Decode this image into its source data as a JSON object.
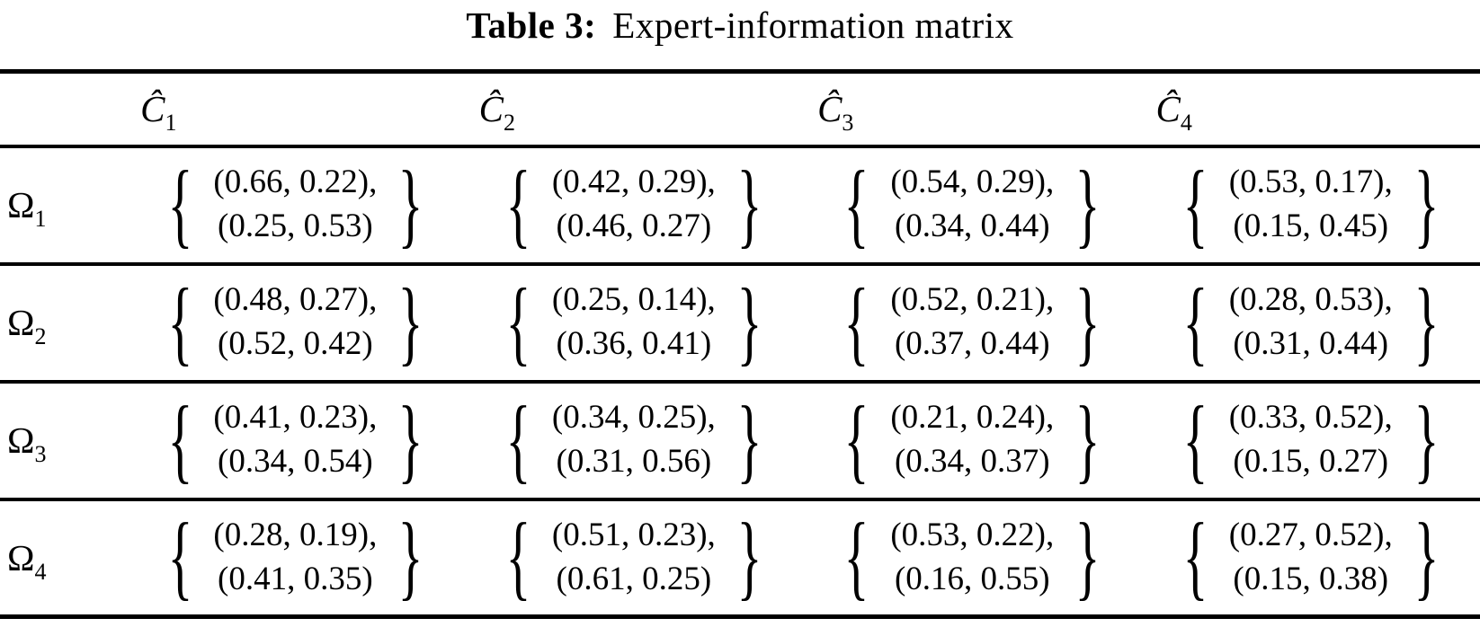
{
  "title": {
    "label": "Table 3:",
    "text": "Expert-information matrix"
  },
  "braces": {
    "left": "{",
    "right": "}"
  },
  "colors": {
    "text": "#000000",
    "background": "#ffffff",
    "rule": "#000000"
  },
  "chart_data": {
    "type": "table",
    "title": "Table 3: Expert-information matrix",
    "columns": [
      "C1",
      "C2",
      "C3",
      "C4"
    ],
    "row_labels": [
      "O1",
      "O2",
      "O3",
      "O4"
    ],
    "cells": [
      [
        [
          [
            0.66,
            0.22
          ],
          [
            0.25,
            0.53
          ]
        ],
        [
          [
            0.42,
            0.29
          ],
          [
            0.46,
            0.27
          ]
        ],
        [
          [
            0.54,
            0.29
          ],
          [
            0.34,
            0.44
          ]
        ],
        [
          [
            0.53,
            0.17
          ],
          [
            0.15,
            0.45
          ]
        ]
      ],
      [
        [
          [
            0.48,
            0.27
          ],
          [
            0.52,
            0.42
          ]
        ],
        [
          [
            0.25,
            0.14
          ],
          [
            0.36,
            0.41
          ]
        ],
        [
          [
            0.52,
            0.21
          ],
          [
            0.37,
            0.44
          ]
        ],
        [
          [
            0.28,
            0.53
          ],
          [
            0.31,
            0.44
          ]
        ]
      ],
      [
        [
          [
            0.41,
            0.23
          ],
          [
            0.34,
            0.54
          ]
        ],
        [
          [
            0.34,
            0.25
          ],
          [
            0.31,
            0.56
          ]
        ],
        [
          [
            0.21,
            0.24
          ],
          [
            0.34,
            0.37
          ]
        ],
        [
          [
            0.33,
            0.52
          ],
          [
            0.15,
            0.27
          ]
        ]
      ],
      [
        [
          [
            0.28,
            0.19
          ],
          [
            0.41,
            0.35
          ]
        ],
        [
          [
            0.51,
            0.23
          ],
          [
            0.61,
            0.25
          ]
        ],
        [
          [
            0.53,
            0.22
          ],
          [
            0.16,
            0.55
          ]
        ],
        [
          [
            0.27,
            0.52
          ],
          [
            0.15,
            0.38
          ]
        ]
      ]
    ]
  },
  "table": {
    "columns": [
      {
        "base": "Ĉ",
        "sub": "1"
      },
      {
        "base": "Ĉ",
        "sub": "2"
      },
      {
        "base": "Ĉ",
        "sub": "3"
      },
      {
        "base": "Ĉ",
        "sub": "4"
      }
    ],
    "rows": [
      {
        "label": {
          "base": "Ω",
          "sub": "1"
        },
        "cells": [
          {
            "line1": "(0.66, 0.22),",
            "line2": "(0.25, 0.53)"
          },
          {
            "line1": "(0.42, 0.29),",
            "line2": "(0.46, 0.27)"
          },
          {
            "line1": "(0.54, 0.29),",
            "line2": "(0.34, 0.44)"
          },
          {
            "line1": "(0.53, 0.17),",
            "line2": "(0.15, 0.45)"
          }
        ]
      },
      {
        "label": {
          "base": "Ω",
          "sub": "2"
        },
        "cells": [
          {
            "line1": "(0.48, 0.27),",
            "line2": "(0.52, 0.42)"
          },
          {
            "line1": "(0.25, 0.14),",
            "line2": "(0.36, 0.41)"
          },
          {
            "line1": "(0.52, 0.21),",
            "line2": "(0.37, 0.44)"
          },
          {
            "line1": "(0.28, 0.53),",
            "line2": "(0.31, 0.44)"
          }
        ]
      },
      {
        "label": {
          "base": "Ω",
          "sub": "3"
        },
        "cells": [
          {
            "line1": "(0.41, 0.23),",
            "line2": "(0.34, 0.54)"
          },
          {
            "line1": "(0.34, 0.25),",
            "line2": "(0.31, 0.56)"
          },
          {
            "line1": "(0.21, 0.24),",
            "line2": "(0.34, 0.37)"
          },
          {
            "line1": "(0.33, 0.52),",
            "line2": "(0.15, 0.27)"
          }
        ]
      },
      {
        "label": {
          "base": "Ω",
          "sub": "4"
        },
        "cells": [
          {
            "line1": "(0.28, 0.19),",
            "line2": "(0.41, 0.35)"
          },
          {
            "line1": "(0.51, 0.23),",
            "line2": "(0.61, 0.25)"
          },
          {
            "line1": "(0.53, 0.22),",
            "line2": "(0.16, 0.55)"
          },
          {
            "line1": "(0.27, 0.52),",
            "line2": "(0.15, 0.38)"
          }
        ]
      }
    ]
  }
}
